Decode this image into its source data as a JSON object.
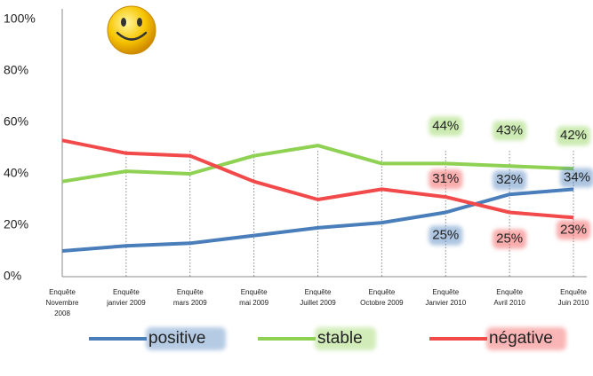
{
  "chart_data": {
    "type": "line",
    "categories": [
      "Enquête\nNovembre\n2008",
      "Enquête\njanvier 2009",
      "Enquête\nmars 2009",
      "Enquête\nmai 2009",
      "Enquête\nJuillet 2009",
      "Enquête\nOctobre 2009",
      "Enquête\nJanvier 2010",
      "Enquête\nAvril 2010",
      "Enquête\nJuin 2010"
    ],
    "series": [
      {
        "name": "positive",
        "color": "#4a7ebb",
        "values": [
          10,
          12,
          13,
          16,
          19,
          21,
          25,
          32,
          34
        ],
        "value_labels": [
          null,
          null,
          null,
          null,
          null,
          null,
          "25%",
          "32%",
          "34%"
        ]
      },
      {
        "name": "stable",
        "color": "#8ed153",
        "values": [
          37,
          41,
          40,
          47,
          51,
          44,
          44,
          43,
          42
        ],
        "value_labels": [
          null,
          null,
          null,
          null,
          null,
          null,
          "44%",
          "43%",
          "42%"
        ]
      },
      {
        "name": "négative",
        "color": "#f24a4a",
        "values": [
          53,
          48,
          47,
          37,
          30,
          34,
          31,
          25,
          23
        ],
        "value_labels": [
          null,
          null,
          null,
          null,
          null,
          null,
          "31%",
          "25%",
          "23%"
        ]
      }
    ],
    "ylim": [
      0,
      100
    ],
    "yticks": [
      {
        "value": 0,
        "label": "0%"
      },
      {
        "value": 20,
        "label": "20%"
      },
      {
        "value": 40,
        "label": "40%"
      },
      {
        "value": 60,
        "label": "60%"
      },
      {
        "value": 80,
        "label": "80%"
      },
      {
        "value": 100,
        "label": "100%"
      }
    ]
  }
}
